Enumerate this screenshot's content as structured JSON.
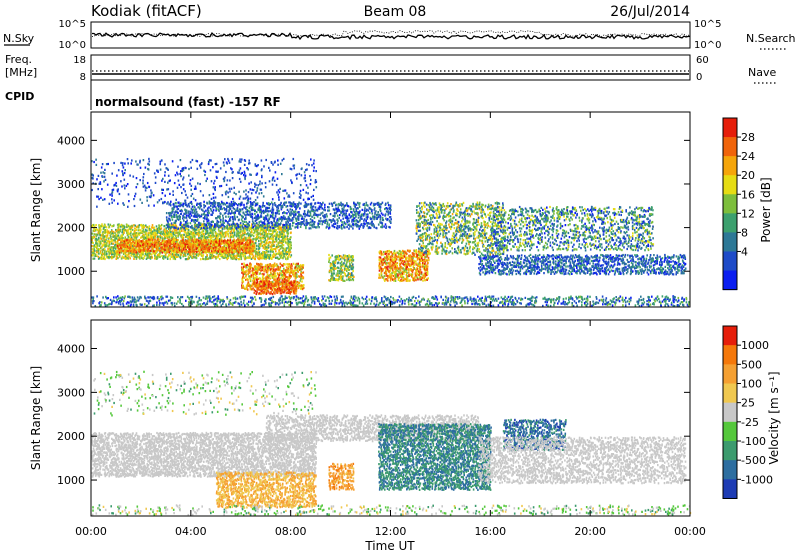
{
  "header": {
    "station": "Kodiak (fitACF)",
    "beam": "Beam 08",
    "date": "26/Jul/2014"
  },
  "noise_panel": {
    "left_label": "N.Sky",
    "left_ticks": [
      "10^5",
      "10^0"
    ],
    "right_label": "N.Search",
    "right_ticks": [
      "10^5",
      "10^0"
    ]
  },
  "freq_panel": {
    "left_label_line1": "Freq.",
    "left_label_line2": "[MHz]",
    "left_ticks": [
      "18",
      "8"
    ],
    "right_label": "Nave",
    "right_ticks": [
      "60",
      "0"
    ]
  },
  "cpid_panel": {
    "label": "CPID",
    "text": "normalsound (fast) -157 RF"
  },
  "chart_data": [
    {
      "type": "heatmap",
      "name": "power",
      "xlabel": "Time UT",
      "ylabel": "Slant Range [km]",
      "xlim_hours": [
        0,
        24
      ],
      "ylim": [
        180,
        4650
      ],
      "y_ticks": [
        "1000",
        "2000",
        "3000",
        "4000"
      ],
      "colorbar_label": "Power [dB]",
      "colorbar_ticks": [
        "28",
        "24",
        "20",
        "16",
        "12",
        "8",
        "4"
      ],
      "colorbar_colors": [
        "#0a1ef0",
        "#1e4bc8",
        "#2d7896",
        "#3ca06e",
        "#7dbe3c",
        "#e6dc14",
        "#f5a50a",
        "#f0640a",
        "#e61e0a"
      ]
    },
    {
      "type": "heatmap",
      "name": "velocity",
      "xlabel": "Time UT",
      "ylabel": "Slant Range [km]",
      "xlim_hours": [
        0,
        24
      ],
      "ylim": [
        180,
        4650
      ],
      "y_ticks": [
        "1000",
        "2000",
        "3000",
        "4000"
      ],
      "colorbar_label": "Velocity [m s⁻¹]",
      "colorbar_ticks": [
        "1000",
        "500",
        "100",
        "25",
        "-25",
        "-100",
        "-500",
        "-1000"
      ],
      "colorbar_colors": [
        "#1e3cb4",
        "#2d6ea0",
        "#3c9b6e",
        "#55c83c",
        "#c8c8c8",
        "#f0c850",
        "#f5a032",
        "#f5780a",
        "#e61e0a"
      ]
    }
  ],
  "x_ticks": [
    "00:00",
    "04:00",
    "08:00",
    "12:00",
    "16:00",
    "20:00",
    "00:00"
  ],
  "x_axis_label": "Time UT"
}
